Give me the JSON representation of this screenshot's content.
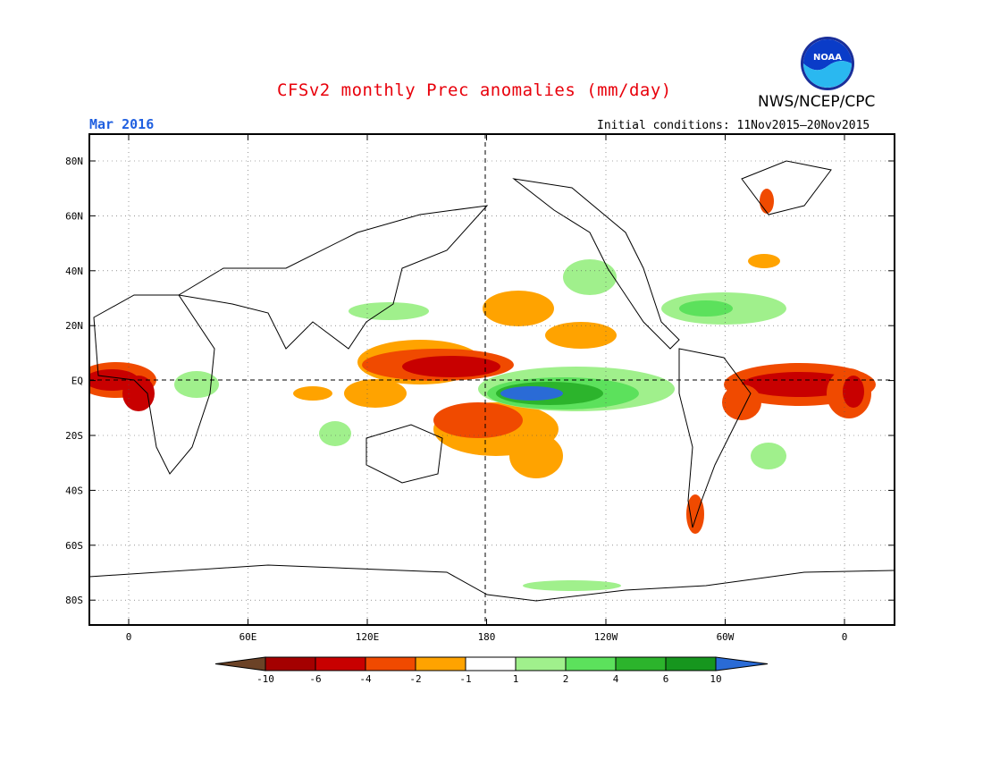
{
  "title": "CFSv2 monthly Prec anomalies (mm/day)",
  "target_month": "Mar 2016",
  "initial_conditions": "Initial conditions: 11Nov2015–20Nov2015",
  "agency": "NWS/NCEP/CPC",
  "logo_text": "NOAA",
  "x_ticks": [
    "0",
    "60E",
    "120E",
    "180",
    "120W",
    "60W",
    "0"
  ],
  "y_ticks": [
    "80N",
    "60N",
    "40N",
    "20N",
    "EQ",
    "20S",
    "40S",
    "60S",
    "80S"
  ],
  "colorbar": {
    "labels": [
      "-10",
      "-6",
      "-4",
      "-2",
      "-1",
      "1",
      "2",
      "4",
      "6",
      "10"
    ],
    "colors": [
      "#6b4226",
      "#a40000",
      "#c80000",
      "#f04a00",
      "#ffa300",
      "#ffffff",
      "#a0f08c",
      "#5ce15c",
      "#2cb42c",
      "#16961e",
      "#2a6bd6"
    ]
  },
  "chart_data": {
    "type": "heatmap",
    "title": "CFSv2 monthly Prec anomalies (mm/day)",
    "units": "mm/day",
    "x_range": [
      "20W",
      "0 (360)",
      "20E wrap"
    ],
    "y_range": [
      "90S",
      "90N"
    ],
    "grid": true,
    "levels": [
      -10,
      -6,
      -4,
      -2,
      -1,
      1,
      2,
      4,
      6,
      10
    ]
  }
}
